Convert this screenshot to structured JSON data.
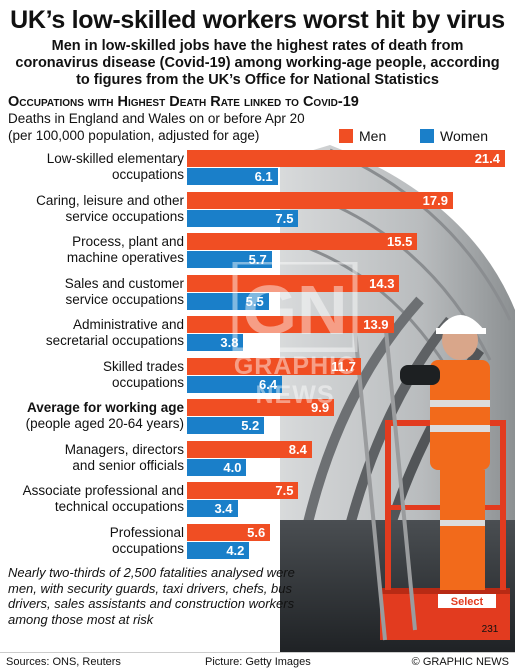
{
  "header": {
    "title": "UK’s low-skilled workers worst hit by virus",
    "subtitle": "Men in low-skilled jobs have the highest rates of death from coronavirus disease (Covid-19) among working-age people, according to figures from the UK’s Office for National Statistics"
  },
  "chart_data": {
    "type": "bar",
    "orientation": "horizontal",
    "title": "Occupations with Highest Death Rate linked to Covid-19",
    "subtitle_lines": [
      "Deaths in England and Wales on or before Apr 20",
      "(per 100,000 population, adjusted for age)"
    ],
    "categories": [
      {
        "line1": "Low-skilled elementary",
        "line2": "occupations"
      },
      {
        "line1": "Caring, leisure and other",
        "line2": "service occupations"
      },
      {
        "line1": "Process, plant and",
        "line2": "machine operatives"
      },
      {
        "line1": "Sales and customer",
        "line2": "service occupations"
      },
      {
        "line1": "Administrative and",
        "line2": "secretarial occupations"
      },
      {
        "line1": "Skilled trades",
        "line2": "occupations"
      },
      {
        "line1": "Average for working age",
        "line2": "(people aged 20-64 years)",
        "emphasis": true
      },
      {
        "line1": "Managers, directors",
        "line2": "and senior officials"
      },
      {
        "line1": "Associate professional and",
        "line2": "technical occupations"
      },
      {
        "line1": "Professional",
        "line2": "occupations"
      }
    ],
    "series": [
      {
        "name": "Men",
        "color": "#f04e23",
        "values": [
          21.4,
          17.9,
          15.5,
          14.3,
          13.9,
          11.7,
          9.9,
          8.4,
          7.5,
          5.6
        ],
        "labels": [
          "21.4",
          "17.9",
          "15.5",
          "14.3",
          "13.9",
          "11.7",
          "9.9",
          "8.4",
          "7.5",
          "5.6"
        ]
      },
      {
        "name": "Women",
        "color": "#1a7fc9",
        "values": [
          6.1,
          7.5,
          5.7,
          5.5,
          3.8,
          6.4,
          5.2,
          4.0,
          3.4,
          4.2
        ],
        "labels": [
          "6.1",
          "7.5",
          "5.7",
          "5.5",
          "3.8",
          "6.4",
          "5.2",
          "4.0",
          "3.4",
          "4.2"
        ]
      }
    ],
    "xlim": [
      0,
      21.4
    ],
    "grid": false,
    "legend_position": "top-right"
  },
  "note": "Nearly two-thirds of 2,500 fatalities analysed were men, with security guards, taxi drivers, chefs, bus drivers, sales assistants and construction workers among those most at risk",
  "footer": {
    "sources": "Sources: ONS, Reuters",
    "picture": "Picture: Getty Images",
    "credit": "© GRAPHIC NEWS"
  },
  "watermark": {
    "logo": "GN",
    "text": "GRAPHIC NEWS"
  },
  "photo": {
    "sign_text": "Select",
    "number": "231"
  }
}
